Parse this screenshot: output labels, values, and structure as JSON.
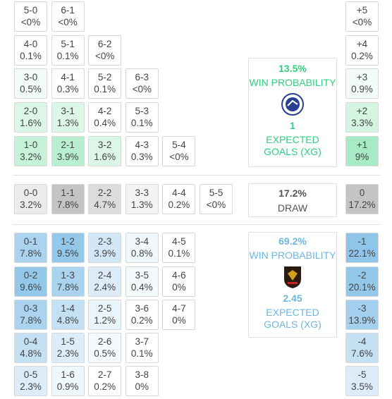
{
  "home": {
    "rows": [
      {
        "cells": [
          {
            "score": "5-0",
            "prob": "<0%",
            "color": "#ffffff"
          },
          {
            "score": "6-1",
            "prob": "<0%",
            "color": "#ffffff"
          }
        ],
        "margin": {
          "score": "+5",
          "prob": "<0%",
          "color": "#ffffff"
        }
      },
      {
        "cells": [
          {
            "score": "4-0",
            "prob": "0.1%",
            "color": "#ffffff"
          },
          {
            "score": "5-1",
            "prob": "0.1%",
            "color": "#ffffff"
          },
          {
            "score": "6-2",
            "prob": "<0%",
            "color": "#ffffff"
          }
        ],
        "margin": {
          "score": "+4",
          "prob": "0.2%",
          "color": "#ffffff"
        }
      },
      {
        "cells": [
          {
            "score": "3-0",
            "prob": "0.5%",
            "color": "#f3fcf7"
          },
          {
            "score": "4-1",
            "prob": "0.3%",
            "color": "#ffffff"
          },
          {
            "score": "5-2",
            "prob": "0.1%",
            "color": "#ffffff"
          },
          {
            "score": "6-3",
            "prob": "<0%",
            "color": "#ffffff"
          }
        ],
        "margin": {
          "score": "+3",
          "prob": "0.9%",
          "color": "#f3fcf7"
        }
      },
      {
        "cells": [
          {
            "score": "2-0",
            "prob": "1.6%",
            "color": "#dcf7e8"
          },
          {
            "score": "3-1",
            "prob": "1.3%",
            "color": "#dcf7e8"
          },
          {
            "score": "4-2",
            "prob": "0.4%",
            "color": "#ffffff"
          },
          {
            "score": "5-3",
            "prob": "0.1%",
            "color": "#ffffff"
          }
        ],
        "margin": {
          "score": "+2",
          "prob": "3.3%",
          "color": "#d3f5e2"
        }
      },
      {
        "cells": [
          {
            "score": "1-0",
            "prob": "3.2%",
            "color": "#c6f2da"
          },
          {
            "score": "2-1",
            "prob": "3.9%",
            "color": "#b8efd0"
          },
          {
            "score": "3-2",
            "prob": "1.6%",
            "color": "#dcf7e8"
          },
          {
            "score": "4-3",
            "prob": "0.3%",
            "color": "#ffffff"
          },
          {
            "score": "5-4",
            "prob": "<0%",
            "color": "#ffffff"
          }
        ],
        "margin": {
          "score": "+1",
          "prob": "9%",
          "color": "#a6ebc5"
        }
      }
    ],
    "panel": {
      "percent": "13.5%",
      "label": "WIN PROBABILITY",
      "xg": "1",
      "xg_label": "EXPECTED GOALS (XG)"
    }
  },
  "draw": {
    "rows": [
      {
        "cells": [
          {
            "score": "0-0",
            "prob": "3.2%",
            "color": "#ececec"
          },
          {
            "score": "1-1",
            "prob": "7.8%",
            "color": "#c4c4c4"
          },
          {
            "score": "2-2",
            "prob": "4.7%",
            "color": "#dcdcdc"
          },
          {
            "score": "3-3",
            "prob": "1.3%",
            "color": "#f4f4f4"
          },
          {
            "score": "4-4",
            "prob": "0.2%",
            "color": "#ffffff"
          },
          {
            "score": "5-5",
            "prob": "<0%",
            "color": "#ffffff"
          }
        ],
        "margin": {
          "score": "0",
          "prob": "17.2%",
          "color": "#c4c4c4"
        }
      }
    ],
    "panel": {
      "percent": "17.2%",
      "label": "DRAW"
    }
  },
  "away": {
    "rows": [
      {
        "cells": [
          {
            "score": "0-1",
            "prob": "7.8%",
            "color": "#a9d3ef"
          },
          {
            "score": "1-2",
            "prob": "9.5%",
            "color": "#93c8ea"
          },
          {
            "score": "2-3",
            "prob": "3.9%",
            "color": "#d2e7f6"
          },
          {
            "score": "3-4",
            "prob": "0.8%",
            "color": "#f1f8fd"
          },
          {
            "score": "4-5",
            "prob": "0.1%",
            "color": "#ffffff"
          }
        ],
        "margin": {
          "score": "-1",
          "prob": "22.1%",
          "color": "#8ec5e8"
        }
      },
      {
        "cells": [
          {
            "score": "0-2",
            "prob": "9.6%",
            "color": "#93c8ea"
          },
          {
            "score": "1-3",
            "prob": "7.8%",
            "color": "#a9d3ef"
          },
          {
            "score": "2-4",
            "prob": "2.4%",
            "color": "#dcecf8"
          },
          {
            "score": "3-5",
            "prob": "0.4%",
            "color": "#f5fafd"
          },
          {
            "score": "4-6",
            "prob": "0%",
            "color": "#ffffff"
          }
        ],
        "margin": {
          "score": "-2",
          "prob": "20.1%",
          "color": "#93c8ea"
        }
      },
      {
        "cells": [
          {
            "score": "0-3",
            "prob": "7.8%",
            "color": "#a9d3ef"
          },
          {
            "score": "1-4",
            "prob": "4.8%",
            "color": "#c4e0f3"
          },
          {
            "score": "2-5",
            "prob": "1.2%",
            "color": "#eaf4fb"
          },
          {
            "score": "3-6",
            "prob": "0.2%",
            "color": "#ffffff"
          },
          {
            "score": "4-7",
            "prob": "0%",
            "color": "#ffffff"
          }
        ],
        "margin": {
          "score": "-3",
          "prob": "13.9%",
          "color": "#a3d0ee"
        }
      },
      {
        "cells": [
          {
            "score": "0-4",
            "prob": "4.8%",
            "color": "#c4e0f3"
          },
          {
            "score": "1-5",
            "prob": "2.3%",
            "color": "#dcecf8"
          },
          {
            "score": "2-6",
            "prob": "0.5%",
            "color": "#f3f9fd"
          },
          {
            "score": "3-7",
            "prob": "0.1%",
            "color": "#ffffff"
          }
        ],
        "margin": {
          "score": "-4",
          "prob": "7.6%",
          "color": "#c4e0f3"
        }
      },
      {
        "cells": [
          {
            "score": "0-5",
            "prob": "2.3%",
            "color": "#dcecf8"
          },
          {
            "score": "1-6",
            "prob": "0.9%",
            "color": "#eff6fc"
          },
          {
            "score": "2-7",
            "prob": "0.2%",
            "color": "#ffffff"
          },
          {
            "score": "3-8",
            "prob": "0%",
            "color": "#ffffff"
          }
        ],
        "margin": {
          "score": "-5",
          "prob": "3.5%",
          "color": "#dcecf8"
        }
      }
    ],
    "panel": {
      "percent": "69.2%",
      "label": "WIN PROBABILITY",
      "xg": "2.45",
      "xg_label": "EXPECTED GOALS (XG)"
    }
  }
}
